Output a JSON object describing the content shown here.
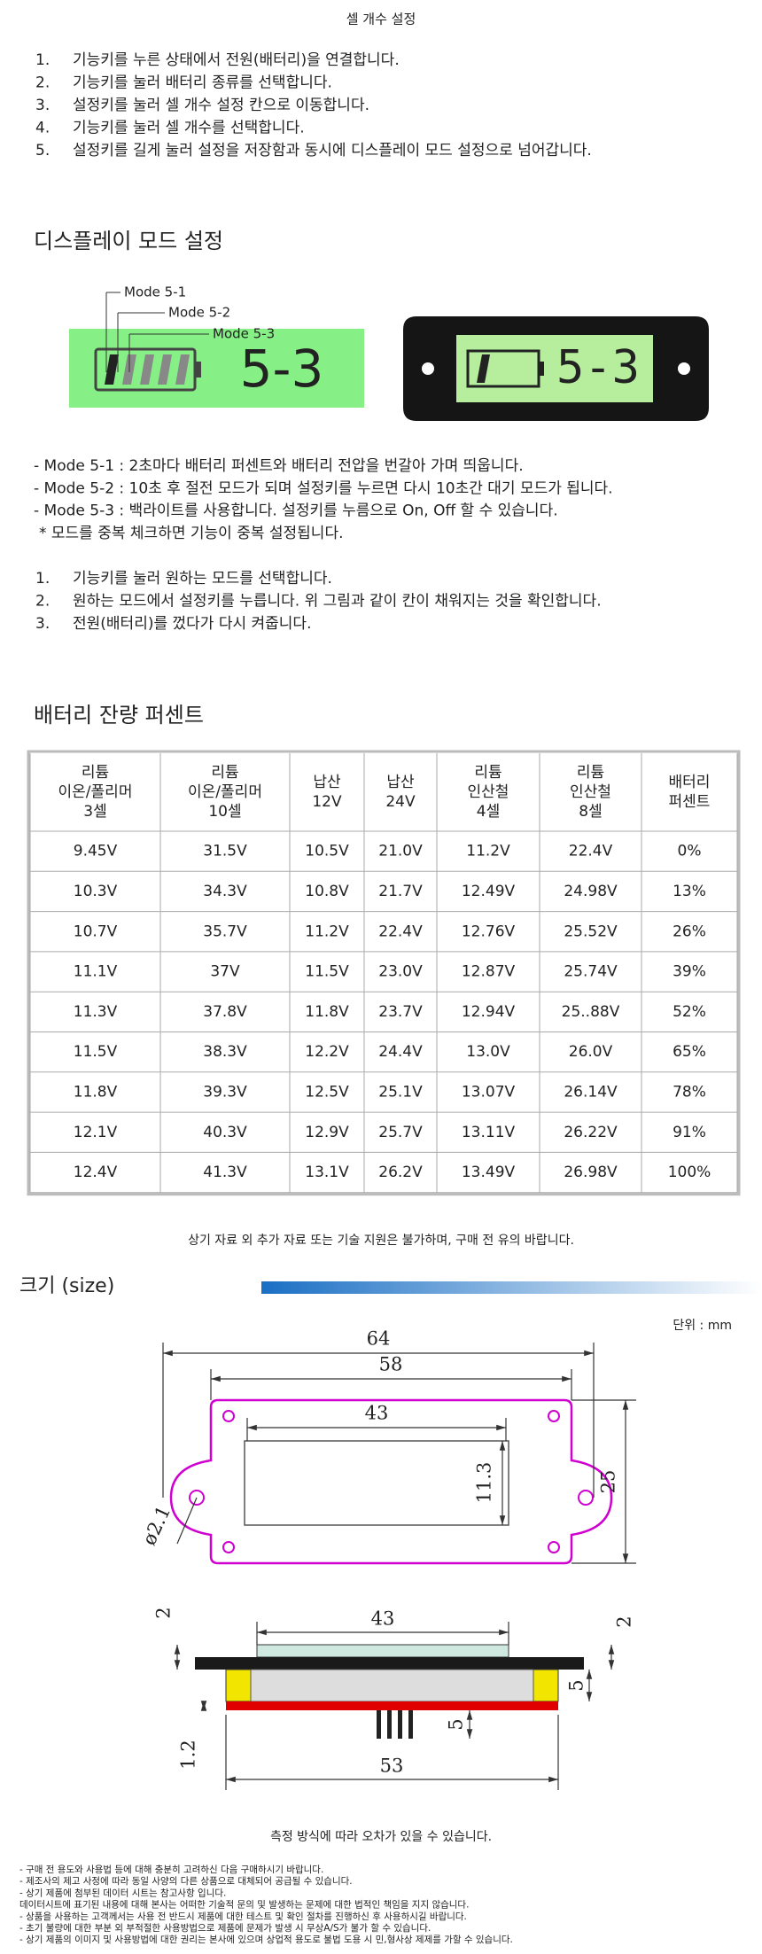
{
  "cell_setting": {
    "title": "셀 개수 설정",
    "steps": [
      {
        "number": "1.",
        "text": "기능키를 누른 상태에서 전원(배터리)을 연결합니다."
      },
      {
        "number": "2.",
        "text": "기능키를 눌러 배터리 종류를 선택합니다."
      },
      {
        "number": "3.",
        "text": "설정키를 눌러 셀 개수 설정 칸으로 이동합니다."
      },
      {
        "number": "4.",
        "text": "기능키를 눌러 셀 개수를 선택합니다."
      },
      {
        "number": "5.",
        "text": "설정키를 길게 눌러 설정을 저장함과 동시에 디스플레이 모드 설정으로 넘어갑니다."
      }
    ]
  },
  "display_mode": {
    "heading": "디스플레이 모드 설정",
    "image": {
      "callouts": [
        "Mode 5-1",
        "Mode 5-2",
        "Mode 5-3"
      ],
      "display": "5-3",
      "device_display": "5-3"
    },
    "modes": [
      "- Mode 5-1 : 2초마다 배터리 퍼센트와 배터리 전압을 번갈아 가며 띄웁니다.",
      "- Mode 5-2 : 10초 후 절전 모드가 되며 설정키를 누르면 다시 10초간 대기 모드가 됩니다.",
      "- Mode 5-3 : 백라이트를 사용합니다. 설정키를 누름으로 On, Off 할 수 있습니다.",
      "* 모드를 중복 체크하면 기능이 중복 설정됩니다."
    ],
    "steps": [
      {
        "number": "1.",
        "text": "기능키를 눌러 원하는 모드를 선택합니다."
      },
      {
        "number": "2.",
        "text": "원하는 모드에서 설정키를 누릅니다. 위 그림과 같이 칸이 채워지는 것을 확인합니다."
      },
      {
        "number": "3.",
        "text": "전원(배터리)를 껐다가 다시 켜줍니다."
      }
    ]
  },
  "battery_table": {
    "heading": "배터리 잔량 퍼센트",
    "header": [
      [
        "리튬",
        "이온/폴리머",
        "3셀"
      ],
      [
        "리튬",
        "이온/폴리머",
        "10셀"
      ],
      [
        "납산",
        "12V"
      ],
      [
        "납산",
        "24V"
      ],
      [
        "리튬",
        "인산철",
        "4셀"
      ],
      [
        "리튬",
        "인산철",
        "8셀"
      ],
      [
        "배터리",
        "퍼센트"
      ]
    ],
    "rows": [
      [
        "9.45V",
        "31.5V",
        "10.5V",
        "21.0V",
        "11.2V",
        "22.4V",
        "0%"
      ],
      [
        "10.3V",
        "34.3V",
        "10.8V",
        "21.7V",
        "12.49V",
        "24.98V",
        "13%"
      ],
      [
        "10.7V",
        "35.7V",
        "11.2V",
        "22.4V",
        "12.76V",
        "25.52V",
        "26%"
      ],
      [
        "11.1V",
        "37V",
        "11.5V",
        "23.0V",
        "12.87V",
        "25.74V",
        "39%"
      ],
      [
        "11.3V",
        "37.8V",
        "11.8V",
        "23.7V",
        "12.94V",
        "25..88V",
        "52%"
      ],
      [
        "11.5V",
        "38.3V",
        "12.2V",
        "24.4V",
        "13.0V",
        "26.0V",
        "65%"
      ],
      [
        "11.8V",
        "39.3V",
        "12.5V",
        "25.1V",
        "13.07V",
        "26.14V",
        "78%"
      ],
      [
        "12.1V",
        "40.3V",
        "12.9V",
        "25.7V",
        "13.11V",
        "26.22V",
        "91%"
      ],
      [
        "12.4V",
        "41.3V",
        "13.1V",
        "26.2V",
        "13.49V",
        "26.98V",
        "100%"
      ]
    ]
  },
  "notice": "상기 자료 외 추가 자료 또는 기술 지원은 불가하며, 구매 전 유의 바랍니다.",
  "size": {
    "heading": "크기 (size)",
    "unit": "단위 : mm",
    "top_view": {
      "width_outer": "64",
      "width_holes": "58",
      "window_width": "43",
      "window_height": "11.3",
      "height": "25",
      "hole": "ø2.1"
    },
    "side_view": {
      "glass_width": "43",
      "glass_thickness": "2",
      "frame_thickness": "2",
      "body_height": "5",
      "pin_length": "5",
      "board_thickness": "1.2",
      "board_width": "53"
    },
    "caption": "측정 방식에 따라 오차가 있을 수 있습니다."
  },
  "disclaimers": [
    "- 구매 전 용도와 사용법 등에 대해 충분히 고려하신 다음 구매하시기 바랍니다.",
    "- 제조사의 제고 사정에 따라 동일 사양의 다른 상품으로 대체되어 공급될 수 있습니다.",
    "- 상기 제품에 첨부된 데이터 시트는 참고사항 입니다.",
    "  데이터시트에 표기된 내용에 대해 본사는 어떠한 기술적 문의 및 발생하는 문제에 대한 법적인 책임을 지지 않습니다.",
    "- 상품을 사용하는 고객께서는 사용 전 반드시 제품에 대한 테스트 및 확인 절차를 진행하신 후 사용하시길 바랍니다.",
    "- 초기 불량에 대한 부분 외 부적절한 사용방법으로 제품에 문제가 발생 시 무상A/S가 불가 할 수 있습니다.",
    "- 상기 제품의 이미지 및 사용방법에 대한 권리는 본사에 있으며 상업적 용도로 불법 도용 시 민,형사상 제제를 가할 수 있습니다."
  ]
}
